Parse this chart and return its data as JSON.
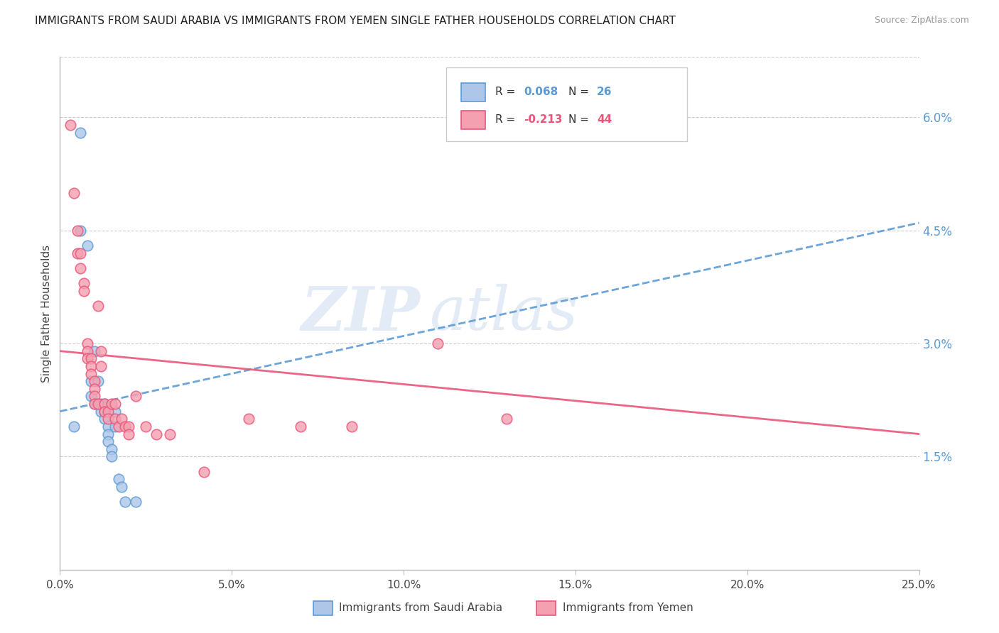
{
  "title": "IMMIGRANTS FROM SAUDI ARABIA VS IMMIGRANTS FROM YEMEN SINGLE FATHER HOUSEHOLDS CORRELATION CHART",
  "source": "Source: ZipAtlas.com",
  "ylabel": "Single Father Households",
  "right_yticks": [
    "6.0%",
    "4.5%",
    "3.0%",
    "1.5%"
  ],
  "right_ytick_vals": [
    0.06,
    0.045,
    0.03,
    0.015
  ],
  "xlim": [
    0.0,
    0.25
  ],
  "ylim": [
    0.0,
    0.068
  ],
  "color_saudi": "#aec6e8",
  "color_yemen": "#f4a0b0",
  "color_saudi_line": "#5b9bd5",
  "color_yemen_line": "#e8567a",
  "color_right_labels": "#5b9bd5",
  "watermark_zip": "ZIP",
  "watermark_atlas": "atlas",
  "saudi_x": [
    0.004,
    0.006,
    0.006,
    0.008,
    0.009,
    0.009,
    0.01,
    0.01,
    0.011,
    0.011,
    0.012,
    0.012,
    0.013,
    0.013,
    0.013,
    0.014,
    0.014,
    0.014,
    0.015,
    0.015,
    0.016,
    0.016,
    0.017,
    0.018,
    0.019,
    0.022
  ],
  "saudi_y": [
    0.019,
    0.058,
    0.045,
    0.043,
    0.025,
    0.023,
    0.029,
    0.022,
    0.025,
    0.022,
    0.022,
    0.021,
    0.022,
    0.021,
    0.02,
    0.019,
    0.018,
    0.017,
    0.016,
    0.015,
    0.021,
    0.019,
    0.012,
    0.011,
    0.009,
    0.009
  ],
  "yemen_x": [
    0.003,
    0.004,
    0.005,
    0.005,
    0.006,
    0.006,
    0.007,
    0.007,
    0.008,
    0.008,
    0.008,
    0.009,
    0.009,
    0.009,
    0.01,
    0.01,
    0.01,
    0.01,
    0.011,
    0.011,
    0.012,
    0.012,
    0.013,
    0.013,
    0.014,
    0.014,
    0.015,
    0.016,
    0.016,
    0.017,
    0.018,
    0.019,
    0.02,
    0.02,
    0.022,
    0.025,
    0.028,
    0.032,
    0.042,
    0.055,
    0.07,
    0.085,
    0.11,
    0.13
  ],
  "yemen_y": [
    0.059,
    0.05,
    0.045,
    0.042,
    0.042,
    0.04,
    0.038,
    0.037,
    0.03,
    0.029,
    0.028,
    0.028,
    0.027,
    0.026,
    0.025,
    0.024,
    0.023,
    0.022,
    0.035,
    0.022,
    0.029,
    0.027,
    0.022,
    0.021,
    0.021,
    0.02,
    0.022,
    0.022,
    0.02,
    0.019,
    0.02,
    0.019,
    0.019,
    0.018,
    0.023,
    0.019,
    0.018,
    0.018,
    0.013,
    0.02,
    0.019,
    0.019,
    0.03,
    0.02
  ],
  "saudi_line_x": [
    0.0,
    0.25
  ],
  "saudi_line_y": [
    0.021,
    0.046
  ],
  "yemen_line_x": [
    0.0,
    0.25
  ],
  "yemen_line_y": [
    0.029,
    0.018
  ]
}
